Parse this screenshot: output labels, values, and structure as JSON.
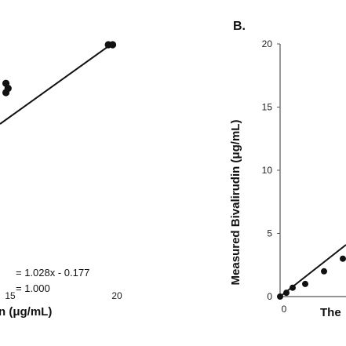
{
  "chart_data": [
    {
      "type": "scatter",
      "title": "",
      "xlabel": "(μg/mL)",
      "xlabel_visible_fragment": "n (μg/mL)",
      "ylabel": "",
      "xticks": [
        15,
        20
      ],
      "trendline": {
        "equation": "= 1.028x -  0.177",
        "r2": "= 1.000",
        "slope": 1.028,
        "intercept": -0.177
      },
      "points": [
        {
          "x": 14.8,
          "y": 15.4
        },
        {
          "x": 14.8,
          "y": 14.3
        },
        {
          "x": 14.9,
          "y": 14.8
        },
        {
          "x": 19.6,
          "y": 20.0
        },
        {
          "x": 19.8,
          "y": 20.0
        }
      ]
    },
    {
      "type": "scatter",
      "panel_label": "B.",
      "title": "",
      "ylabel": "Measured Bivalirudin (μg/mL)",
      "xlabel_visible_fragment": "The",
      "yticks": [
        0,
        5,
        10,
        15,
        20
      ],
      "xticks": [
        0
      ],
      "ylim": [
        0,
        20
      ],
      "points": [
        {
          "x": 0.0,
          "y": 0.0
        },
        {
          "x": 0.5,
          "y": 0.3
        },
        {
          "x": 1.0,
          "y": 0.7
        },
        {
          "x": 2.0,
          "y": 1.0
        },
        {
          "x": 3.5,
          "y": 2.0
        },
        {
          "x": 5.0,
          "y": 3.0
        }
      ]
    }
  ]
}
